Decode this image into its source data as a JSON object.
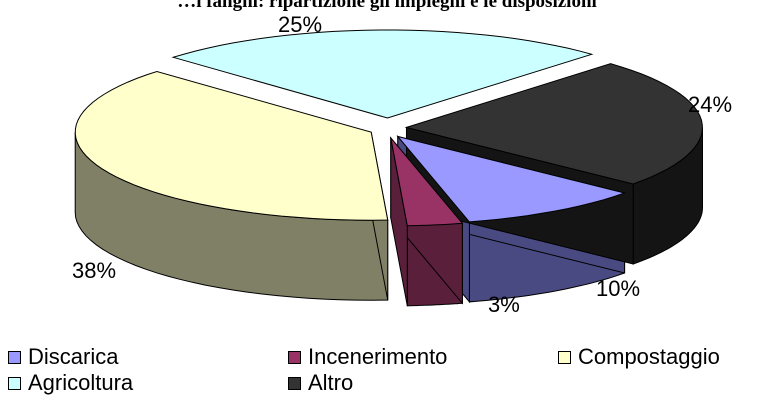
{
  "chart_data": {
    "type": "pie",
    "title": "…i fanghi: ripartizione gli impieghi e le disposizioni",
    "slices": [
      {
        "label": "Discarica",
        "value": 10,
        "color": "#9999ff",
        "side": "#4a4a82",
        "label_text": "10%"
      },
      {
        "label": "Incenerimento",
        "value": 3,
        "color": "#993366",
        "side": "#5a1f3a",
        "label_text": "3%"
      },
      {
        "label": "Compostaggio",
        "value": 38,
        "color": "#ffffcc",
        "side": "#808066",
        "label_text": "38%"
      },
      {
        "label": "Agricoltura",
        "value": 25,
        "color": "#ccffff",
        "side": "#669999",
        "label_text": "25%"
      },
      {
        "label": "Altro",
        "value": 24,
        "color": "#333333",
        "side": "#141414",
        "label_text": "24%"
      }
    ],
    "legend_position": "bottom"
  }
}
